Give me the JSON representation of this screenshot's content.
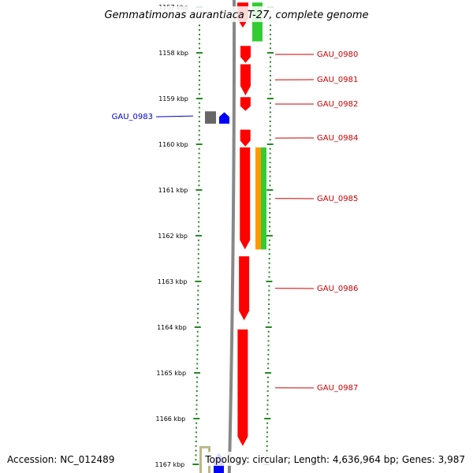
{
  "title": "Gemmatimonas aurantiaca T-27, complete genome",
  "accession": "Accession: NC_012489",
  "topology": "Topology: circular; Length: 4,636,964 bp; Genes: 3,987",
  "colors": {
    "red_gene": "#ff0000",
    "green_gene": "#33cc33",
    "blue_gene": "#0000ff",
    "gray_gene": "#666666",
    "orange_gene": "#ff9900",
    "olive_gene": "#bbb88a",
    "tick": "#228b22",
    "backbone": "#888888",
    "label_red": "#cc0000",
    "label_blue": "#0000cc"
  },
  "chart_data": {
    "type": "genome-map",
    "kbp_range": [
      1157,
      1167
    ],
    "ticks": [
      {
        "kbp": 1157,
        "label": "1157 kbp"
      },
      {
        "kbp": 1158,
        "label": "1158 kbp"
      },
      {
        "kbp": 1159,
        "label": "1159 kbp"
      },
      {
        "kbp": 1160,
        "label": "1160 kbp"
      },
      {
        "kbp": 1161,
        "label": "1161 kbp"
      },
      {
        "kbp": 1162,
        "label": "1162 kbp"
      },
      {
        "kbp": 1163,
        "label": "1163 kbp"
      },
      {
        "kbp": 1164,
        "label": "1164 kbp"
      },
      {
        "kbp": 1165,
        "label": "1165 kbp"
      },
      {
        "kbp": 1166,
        "label": "1166 kbp"
      },
      {
        "kbp": 1167,
        "label": "1167 kbp"
      }
    ],
    "labeled_genes": [
      {
        "name": "GAU_0980",
        "start": 1157.85,
        "end": 1158.22,
        "strand": "+",
        "color": "red",
        "label_color": "red"
      },
      {
        "name": "GAU_0981",
        "start": 1158.25,
        "end": 1158.93,
        "strand": "+",
        "color": "red",
        "label_color": "red"
      },
      {
        "name": "GAU_0982",
        "start": 1158.97,
        "end": 1159.27,
        "strand": "+",
        "color": "red",
        "label_color": "red"
      },
      {
        "name": "GAU_0983",
        "start": 1159.28,
        "end": 1159.55,
        "strand": "-",
        "color": "gray",
        "label_color": "blue"
      },
      {
        "name": "GAU_0984",
        "start": 1159.68,
        "end": 1160.05,
        "strand": "+",
        "color": "red",
        "label_color": "red"
      },
      {
        "name": "GAU_0985",
        "start": 1160.07,
        "end": 1162.3,
        "strand": "+",
        "color": "red",
        "label_color": "red"
      },
      {
        "name": "GAU_0986",
        "start": 1162.45,
        "end": 1163.85,
        "strand": "+",
        "color": "red",
        "label_color": "red"
      },
      {
        "name": "GAU_0987",
        "start": 1164.05,
        "end": 1166.6,
        "strand": "+",
        "color": "red",
        "label_color": "red"
      }
    ],
    "other_features": [
      {
        "start": 1156.9,
        "end": 1157.45,
        "strand": "+",
        "color": "red",
        "track": "gene-fwd"
      },
      {
        "start": 1156.9,
        "end": 1157.75,
        "strand": "+",
        "color": "green",
        "track": "cds-fwd"
      },
      {
        "start": 1159.3,
        "end": 1159.55,
        "strand": "-",
        "color": "blue",
        "track": "gene-rev"
      },
      {
        "start": 1160.07,
        "end": 1162.3,
        "strand": "+",
        "color": "orange",
        "track": "cds-fwd-1"
      },
      {
        "start": 1160.07,
        "end": 1162.3,
        "strand": "+",
        "color": "green",
        "track": "cds-fwd-2"
      },
      {
        "start": 1166.6,
        "end": 1167.3,
        "strand": "-",
        "color": "olive",
        "track": "cds-rev"
      },
      {
        "start": 1166.75,
        "end": 1167.3,
        "strand": "-",
        "color": "blue",
        "track": "gene-rev"
      }
    ]
  }
}
